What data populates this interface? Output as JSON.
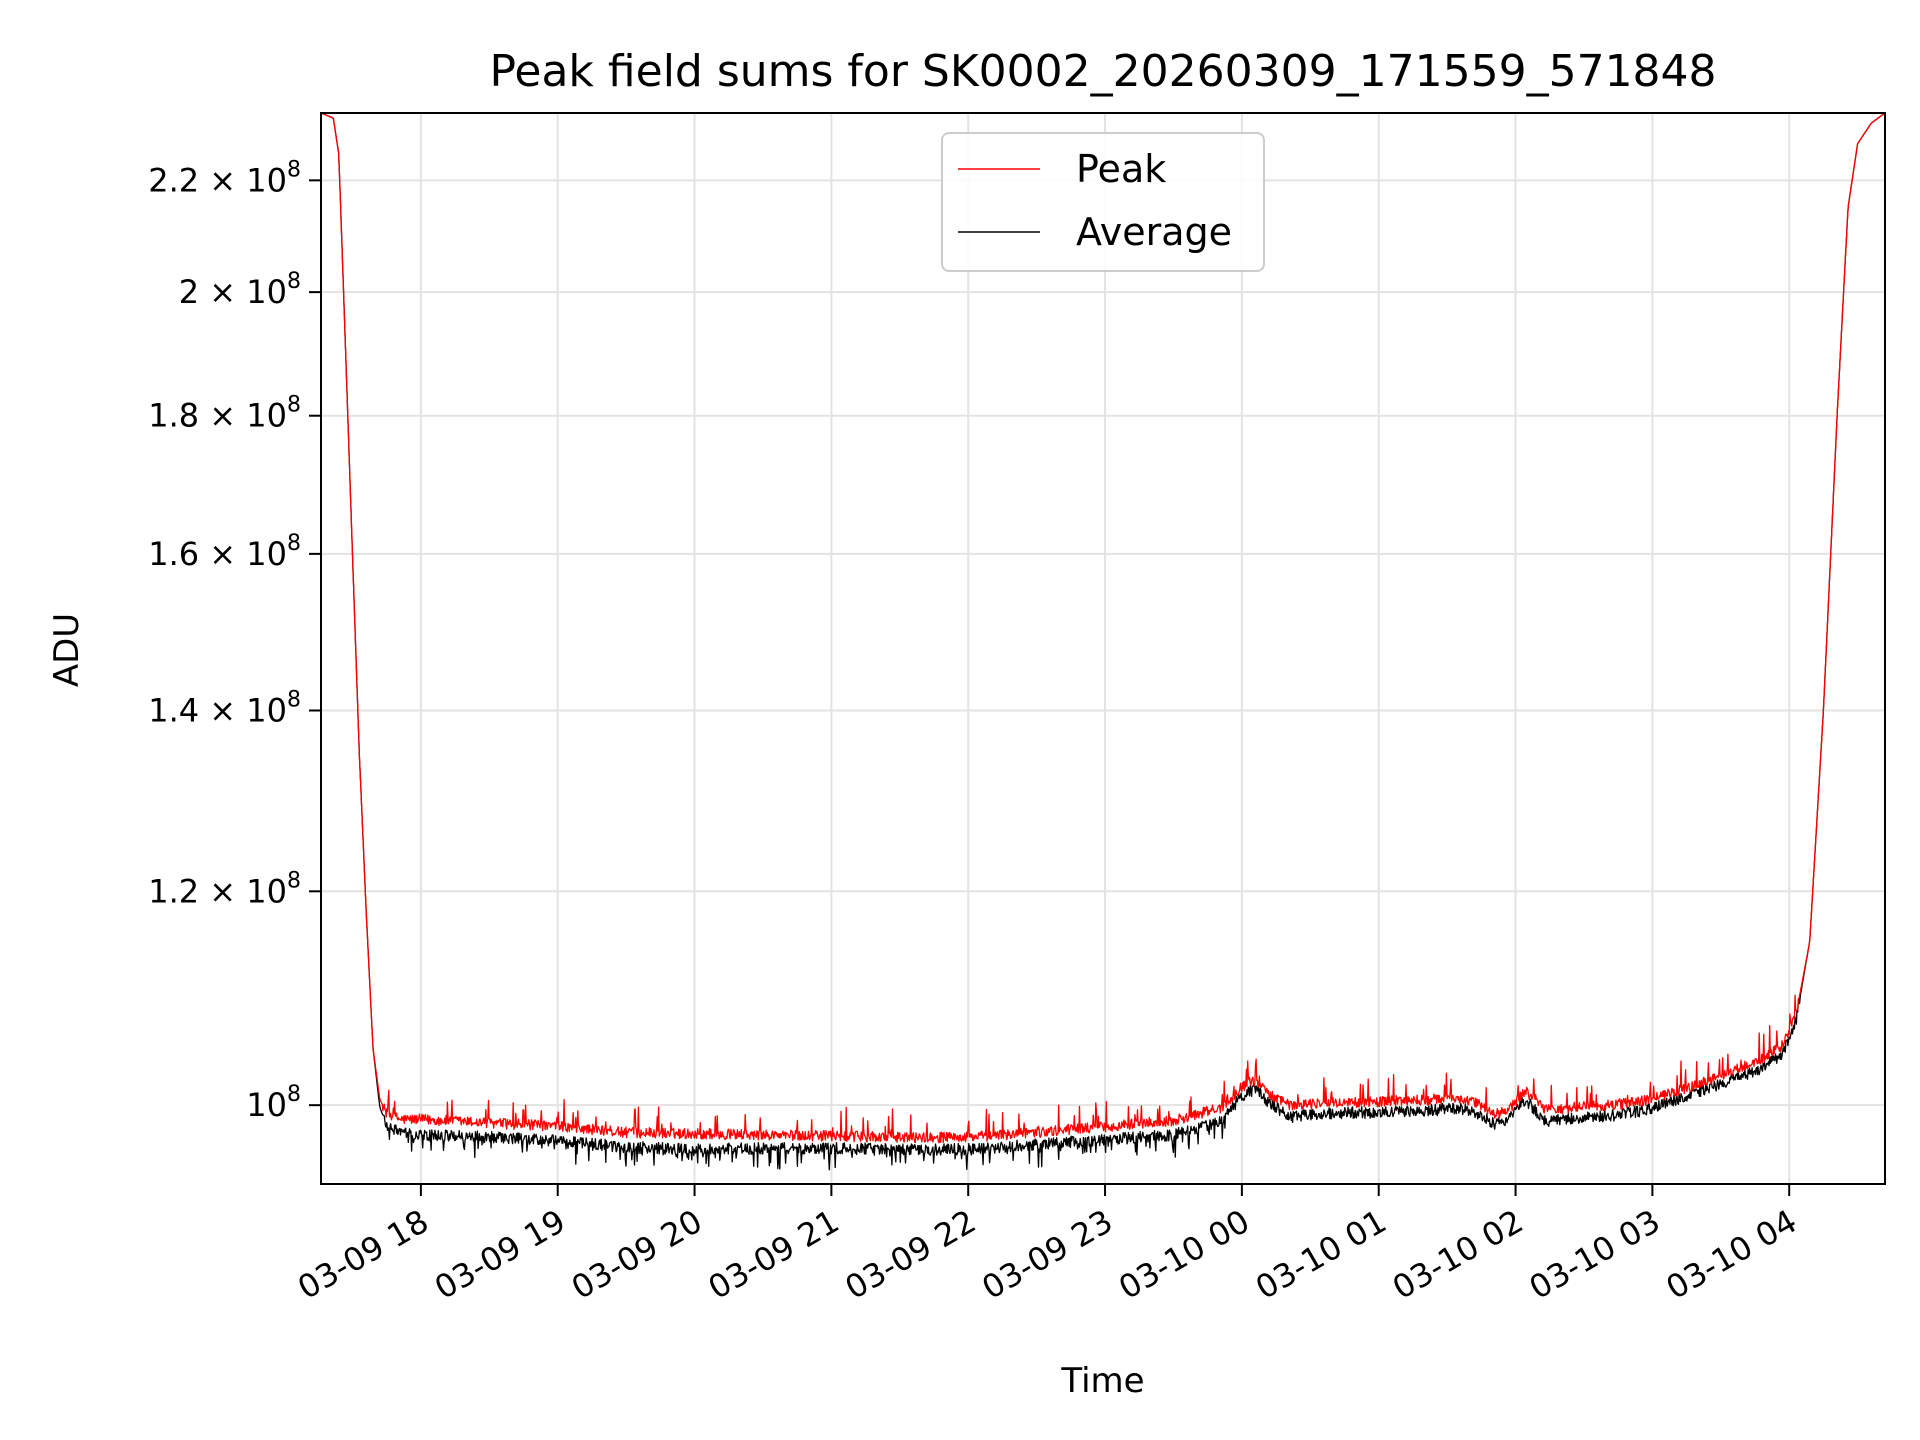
{
  "chart_data": {
    "type": "line",
    "title": "Peak field sums for SK0002_20260309_171559_571848",
    "xlabel": "Time",
    "ylabel": "ADU",
    "yscale": "log",
    "ylim": [
      93500000,
      233000000
    ],
    "xlim": [
      17.27,
      28.7
    ],
    "grid": true,
    "legend": {
      "position": "top-center"
    },
    "x_ticks": [
      {
        "value": 18,
        "label": "03-09 18"
      },
      {
        "value": 19,
        "label": "03-09 19"
      },
      {
        "value": 20,
        "label": "03-09 20"
      },
      {
        "value": 21,
        "label": "03-09 21"
      },
      {
        "value": 22,
        "label": "03-09 22"
      },
      {
        "value": 23,
        "label": "03-09 23"
      },
      {
        "value": 24,
        "label": "03-10 00"
      },
      {
        "value": 25,
        "label": "03-10 01"
      },
      {
        "value": 26,
        "label": "03-10 02"
      },
      {
        "value": 27,
        "label": "03-10 03"
      },
      {
        "value": 28,
        "label": "03-10 04"
      }
    ],
    "y_ticks": [
      {
        "value": 100000000,
        "mant": "10",
        "exp": "8",
        "prefix": ""
      },
      {
        "value": 120000000,
        "mant": "1.2 × 10",
        "exp": "8"
      },
      {
        "value": 140000000,
        "mant": "1.4 × 10",
        "exp": "8"
      },
      {
        "value": 160000000,
        "mant": "1.6 × 10",
        "exp": "8"
      },
      {
        "value": 180000000,
        "mant": "1.8 × 10",
        "exp": "8"
      },
      {
        "value": 200000000,
        "mant": "2 × 10",
        "exp": "8"
      },
      {
        "value": 220000000,
        "mant": "2.2 × 10",
        "exp": "8"
      }
    ],
    "series": [
      {
        "name": "Peak",
        "color": "#ff0000",
        "noise_mode": "spiky",
        "points": [
          [
            17.27,
            233000000
          ],
          [
            17.36,
            232000000
          ],
          [
            17.4,
            225000000
          ],
          [
            17.45,
            190000000
          ],
          [
            17.5,
            160000000
          ],
          [
            17.55,
            135000000
          ],
          [
            17.6,
            118000000
          ],
          [
            17.65,
            105000000
          ],
          [
            17.7,
            100500000
          ],
          [
            17.75,
            99300000
          ],
          [
            17.85,
            98800000
          ],
          [
            18.0,
            98800000
          ],
          [
            18.5,
            98500000
          ],
          [
            19.0,
            98200000
          ],
          [
            19.5,
            97700000
          ],
          [
            20.0,
            97600000
          ],
          [
            20.5,
            97500000
          ],
          [
            21.0,
            97400000
          ],
          [
            21.5,
            97300000
          ],
          [
            22.0,
            97300000
          ],
          [
            22.5,
            97700000
          ],
          [
            23.0,
            98200000
          ],
          [
            23.5,
            98700000
          ],
          [
            23.85,
            99800000
          ],
          [
            24.0,
            101600000
          ],
          [
            24.1,
            102200000
          ],
          [
            24.2,
            101000000
          ],
          [
            24.35,
            100000000
          ],
          [
            24.6,
            100200000
          ],
          [
            25.0,
            100300000
          ],
          [
            25.4,
            100500000
          ],
          [
            25.6,
            100600000
          ],
          [
            25.75,
            100000000
          ],
          [
            25.85,
            99200000
          ],
          [
            25.95,
            99600000
          ],
          [
            26.07,
            101200000
          ],
          [
            26.15,
            100500000
          ],
          [
            26.22,
            99600000
          ],
          [
            26.4,
            99800000
          ],
          [
            26.7,
            100000000
          ],
          [
            27.0,
            100500000
          ],
          [
            27.3,
            101700000
          ],
          [
            27.6,
            103000000
          ],
          [
            27.8,
            104000000
          ],
          [
            27.95,
            105200000
          ],
          [
            28.05,
            108000000
          ],
          [
            28.15,
            115000000
          ],
          [
            28.25,
            140000000
          ],
          [
            28.35,
            180000000
          ],
          [
            28.43,
            215000000
          ],
          [
            28.5,
            227000000
          ],
          [
            28.6,
            231000000
          ],
          [
            28.7,
            233000000
          ]
        ]
      },
      {
        "name": "Average",
        "color": "#000000",
        "noise_mode": "dips",
        "points": [
          [
            17.27,
            233000000
          ],
          [
            17.36,
            232000000
          ],
          [
            17.4,
            225000000
          ],
          [
            17.45,
            190000000
          ],
          [
            17.5,
            160000000
          ],
          [
            17.55,
            135000000
          ],
          [
            17.6,
            118000000
          ],
          [
            17.65,
            105000000
          ],
          [
            17.7,
            99800000
          ],
          [
            17.75,
            98300000
          ],
          [
            17.85,
            97700000
          ],
          [
            18.0,
            97500000
          ],
          [
            18.5,
            97300000
          ],
          [
            19.0,
            97000000
          ],
          [
            19.5,
            96500000
          ],
          [
            20.0,
            96300000
          ],
          [
            20.5,
            96400000
          ],
          [
            21.0,
            96400000
          ],
          [
            21.5,
            96300000
          ],
          [
            22.0,
            96300000
          ],
          [
            22.5,
            96700000
          ],
          [
            23.0,
            97100000
          ],
          [
            23.5,
            97500000
          ],
          [
            23.85,
            98600000
          ],
          [
            24.0,
            100800000
          ],
          [
            24.1,
            101400000
          ],
          [
            24.2,
            100200000
          ],
          [
            24.35,
            99000000
          ],
          [
            24.6,
            99300000
          ],
          [
            25.0,
            99400000
          ],
          [
            25.4,
            99600000
          ],
          [
            25.6,
            99700000
          ],
          [
            25.75,
            99100000
          ],
          [
            25.85,
            98400000
          ],
          [
            25.95,
            98800000
          ],
          [
            26.07,
            100500000
          ],
          [
            26.15,
            99500000
          ],
          [
            26.22,
            98600000
          ],
          [
            26.4,
            98900000
          ],
          [
            26.7,
            99100000
          ],
          [
            27.0,
            99700000
          ],
          [
            27.3,
            101000000
          ],
          [
            27.6,
            102300000
          ],
          [
            27.8,
            103200000
          ],
          [
            27.95,
            104400000
          ],
          [
            28.05,
            107500000
          ],
          [
            28.15,
            115000000
          ],
          [
            28.25,
            140000000
          ],
          [
            28.35,
            180000000
          ],
          [
            28.43,
            215000000
          ],
          [
            28.5,
            227000000
          ],
          [
            28.6,
            231000000
          ],
          [
            28.7,
            233000000
          ]
        ]
      }
    ]
  }
}
